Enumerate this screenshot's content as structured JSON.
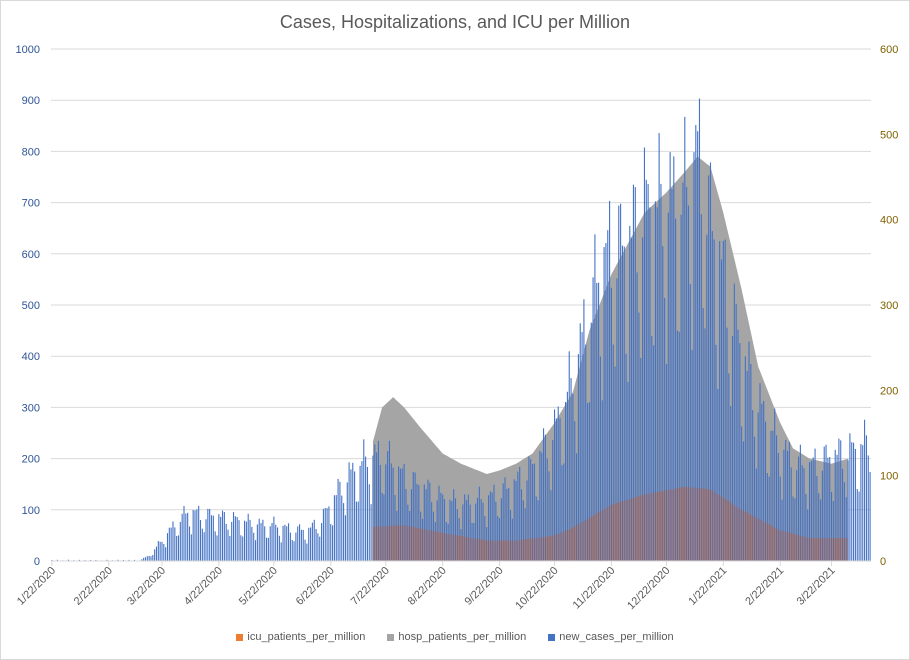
{
  "chart_data": {
    "type": "bar+area",
    "title": "Cases, Hospitalizations, and ICU per Million",
    "start_date": "2020-01-22",
    "end_date": "2021-04-12",
    "primary_axis": {
      "ylim": [
        0,
        1000
      ],
      "ticks": [
        "0",
        "100",
        "200",
        "300",
        "400",
        "500",
        "600",
        "700",
        "800",
        "900",
        "1000"
      ]
    },
    "secondary_axis": {
      "ylim": [
        0,
        600
      ],
      "ticks": [
        "0",
        "100",
        "200",
        "300",
        "400",
        "500",
        "600"
      ]
    },
    "x_tick_labels": [
      "1/22/2020",
      "2/22/2020",
      "3/22/2020",
      "4/22/2020",
      "5/22/2020",
      "6/22/2020",
      "7/22/2020",
      "8/22/2020",
      "9/22/2020",
      "10/22/2020",
      "11/22/2020",
      "12/22/2020",
      "1/22/2021",
      "2/22/2021",
      "3/22/2021"
    ],
    "grid": true,
    "legend_position": "bottom",
    "series": [
      {
        "name": "icu_patients_per_million",
        "axis": "secondary",
        "render": "area",
        "color": "#ED7D31",
        "points": [
          [
            "2020-07-15",
            40
          ],
          [
            "2020-08-01",
            42
          ],
          [
            "2020-08-22",
            33
          ],
          [
            "2020-09-15",
            24
          ],
          [
            "2020-10-01",
            24
          ],
          [
            "2020-10-22",
            30
          ],
          [
            "2020-11-01",
            39
          ],
          [
            "2020-11-22",
            66
          ],
          [
            "2020-12-10",
            78
          ],
          [
            "2021-01-01",
            87
          ],
          [
            "2021-01-15",
            84
          ],
          [
            "2021-02-01",
            60
          ],
          [
            "2021-02-22",
            36
          ],
          [
            "2021-03-10",
            27
          ],
          [
            "2021-03-31",
            27
          ]
        ]
      },
      {
        "name": "hosp_patients_per_million",
        "axis": "secondary",
        "render": "area",
        "color": "#A5A5A5",
        "points": [
          [
            "2020-07-15",
            140
          ],
          [
            "2020-07-20",
            180
          ],
          [
            "2020-07-26",
            192
          ],
          [
            "2020-08-01",
            180
          ],
          [
            "2020-08-10",
            156
          ],
          [
            "2020-08-22",
            126
          ],
          [
            "2020-09-01",
            114
          ],
          [
            "2020-09-15",
            102
          ],
          [
            "2020-09-22",
            106
          ],
          [
            "2020-10-01",
            114
          ],
          [
            "2020-10-10",
            126
          ],
          [
            "2020-10-22",
            162
          ],
          [
            "2020-11-01",
            198
          ],
          [
            "2020-11-10",
            270
          ],
          [
            "2020-11-22",
            336
          ],
          [
            "2020-12-01",
            372
          ],
          [
            "2020-12-10",
            408
          ],
          [
            "2020-12-22",
            432
          ],
          [
            "2021-01-01",
            456
          ],
          [
            "2021-01-08",
            474
          ],
          [
            "2021-01-15",
            462
          ],
          [
            "2021-01-22",
            408
          ],
          [
            "2021-02-01",
            318
          ],
          [
            "2021-02-10",
            228
          ],
          [
            "2021-02-22",
            162
          ],
          [
            "2021-03-01",
            132
          ],
          [
            "2021-03-10",
            120
          ],
          [
            "2021-03-22",
            114
          ],
          [
            "2021-03-31",
            120
          ]
        ]
      },
      {
        "name": "new_cases_per_million",
        "axis": "primary",
        "render": "bar",
        "color": "#4472C4",
        "points": [
          [
            "2020-01-22",
            2
          ],
          [
            "2020-03-10",
            2
          ],
          [
            "2020-03-15",
            10
          ],
          [
            "2020-03-22",
            40
          ],
          [
            "2020-03-29",
            70
          ],
          [
            "2020-04-05",
            95
          ],
          [
            "2020-04-12",
            90
          ],
          [
            "2020-04-22",
            85
          ],
          [
            "2020-05-01",
            80
          ],
          [
            "2020-05-15",
            70
          ],
          [
            "2020-05-22",
            70
          ],
          [
            "2020-06-01",
            60
          ],
          [
            "2020-06-10",
            60
          ],
          [
            "2020-06-17",
            80
          ],
          [
            "2020-06-22",
            110
          ],
          [
            "2020-06-29",
            150
          ],
          [
            "2020-07-06",
            180
          ],
          [
            "2020-07-13",
            200
          ],
          [
            "2020-07-22",
            200
          ],
          [
            "2020-08-01",
            160
          ],
          [
            "2020-08-22",
            120
          ],
          [
            "2020-09-01",
            110
          ],
          [
            "2020-09-15",
            120
          ],
          [
            "2020-09-22",
            130
          ],
          [
            "2020-10-01",
            150
          ],
          [
            "2020-10-10",
            180
          ],
          [
            "2020-10-22",
            250
          ],
          [
            "2020-11-01",
            350
          ],
          [
            "2020-11-08",
            450
          ],
          [
            "2020-11-15",
            550
          ],
          [
            "2020-11-22",
            600
          ],
          [
            "2020-12-01",
            600
          ],
          [
            "2020-12-10",
            680
          ],
          [
            "2020-12-22",
            680
          ],
          [
            "2021-01-01",
            700
          ],
          [
            "2021-01-08",
            780
          ],
          [
            "2021-01-15",
            650
          ],
          [
            "2021-01-22",
            550
          ],
          [
            "2021-02-01",
            400
          ],
          [
            "2021-02-10",
            300
          ],
          [
            "2021-02-22",
            220
          ],
          [
            "2021-03-01",
            190
          ],
          [
            "2021-03-10",
            180
          ],
          [
            "2021-03-22",
            200
          ],
          [
            "2021-04-01",
            210
          ],
          [
            "2021-04-12",
            230
          ]
        ],
        "weekday_pattern": [
          1.0,
          1.1,
          1.15,
          1.1,
          0.95,
          0.7,
          0.6
        ]
      }
    ]
  }
}
